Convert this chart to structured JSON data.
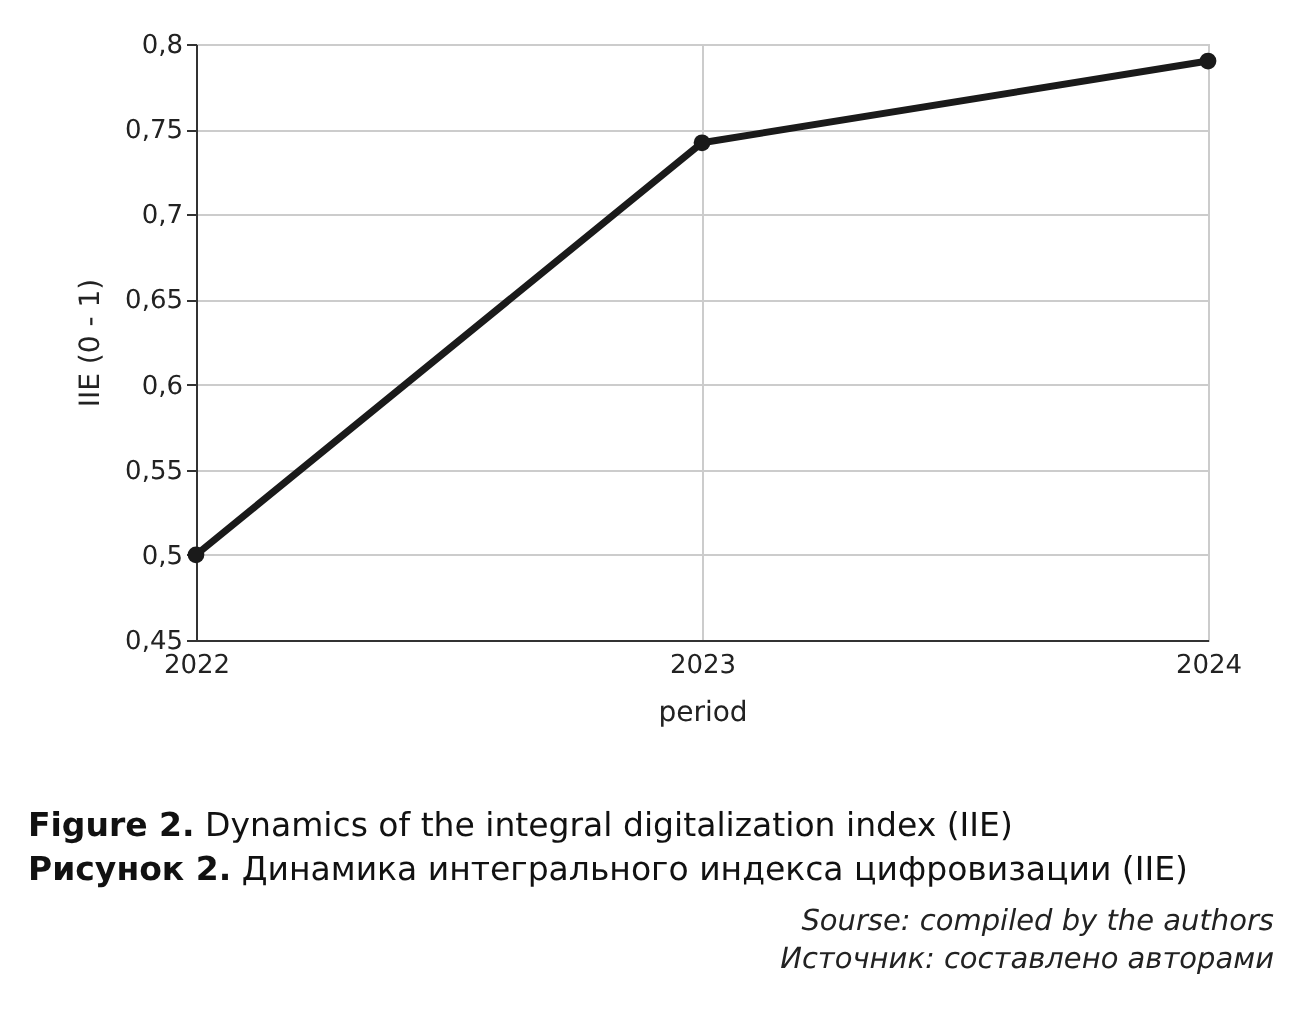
{
  "chart_data": {
    "type": "line",
    "title": "Figure 2. Dynamics of the integral digitalization index (IIE)",
    "subtitle": "Рисунок 2. Динамика интегрального индекса цифровизации (IIE)",
    "xlabel": "period",
    "ylabel": "IIE (0 - 1)",
    "categories": [
      "2022",
      "2023",
      "2024"
    ],
    "series": [
      {
        "color": "#1a1a1a",
        "values": [
          0.5,
          0.742,
          0.79
        ]
      }
    ],
    "ylim": [
      0.45,
      0.8
    ],
    "yticks": [
      {
        "value": 0.45,
        "label": "0,45"
      },
      {
        "value": 0.5,
        "label": "0,5"
      },
      {
        "value": 0.55,
        "label": "0,55"
      },
      {
        "value": 0.6,
        "label": "0,6"
      },
      {
        "value": 0.65,
        "label": "0,65"
      },
      {
        "value": 0.7,
        "label": "0,7"
      },
      {
        "value": 0.75,
        "label": "0,75"
      },
      {
        "value": 0.8,
        "label": "0,8"
      }
    ],
    "grid": true,
    "marker": "circle",
    "line_style": "solid",
    "annotations": [
      "Sourse: compiled by the authors",
      "Источник: составлено авторами"
    ]
  }
}
